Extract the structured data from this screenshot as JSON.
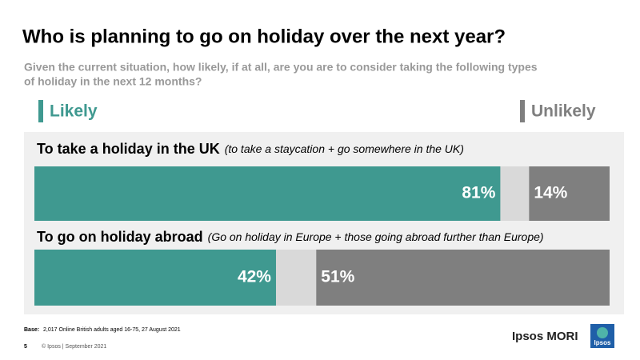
{
  "chart_data": {
    "type": "bar",
    "orientation": "horizontal",
    "stacking": "from-both-ends",
    "title": "Who is planning to go on holiday over the next year?",
    "subtitle": [
      "Given the current situation, how likely, if at all, are you are to consider taking the following types",
      "of holiday in the next 12 months?"
    ],
    "categories": [
      "To take a holiday in the UK",
      "To go on holiday abroad"
    ],
    "category_notes": [
      "(to take a staycation + go somewhere in the UK)",
      "(Go on holiday in Europe + those going abroad further than Europe)"
    ],
    "series": [
      {
        "name": "Likely",
        "color": "#3f9990",
        "values": [
          81,
          42
        ],
        "value_labels": [
          "81%",
          "42%"
        ]
      },
      {
        "name": "Unlikely",
        "color": "#7f7f7f",
        "values": [
          14,
          51
        ],
        "value_labels": [
          "14%",
          "51%"
        ]
      }
    ],
    "xlim": [
      0,
      100
    ]
  },
  "footer": {
    "base_label": "Base:",
    "base_text": "2,017 Online British adults aged 16-75, 27 August 2021",
    "page": "5",
    "copyright": "© Ipsos | September 2021",
    "brand": "Ipsos MORI",
    "logo": "Ipsos"
  }
}
